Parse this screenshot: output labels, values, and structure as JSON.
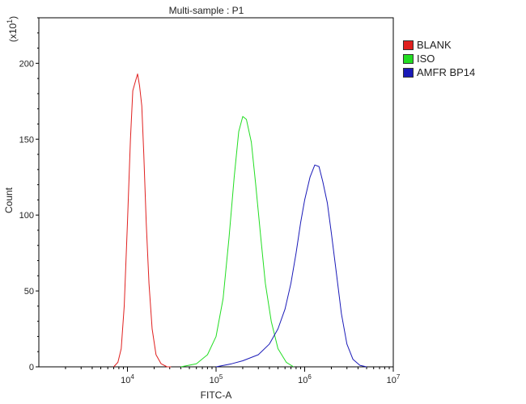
{
  "chart_data": {
    "type": "line",
    "title": "Multi-sample : P1",
    "xlabel": "FITC-A",
    "ylabel": "Count",
    "y_multiplier_label": "(x10",
    "y_multiplier_exp": "1",
    "x_scale": "log",
    "xlim": [
      1000,
      10000000
    ],
    "ylim": [
      0,
      230
    ],
    "y_ticks": [
      0,
      50,
      100,
      150,
      200
    ],
    "x_ticks": [
      {
        "value": 10000,
        "base": "10",
        "exp": "4"
      },
      {
        "value": 100000,
        "base": "10",
        "exp": "5"
      },
      {
        "value": 1000000,
        "base": "10",
        "exp": "6"
      },
      {
        "value": 10000000,
        "base": "10",
        "exp": "7"
      }
    ],
    "legend_position": "top-right",
    "series": [
      {
        "name": "BLANK",
        "color": "#e0201f",
        "x": [
          7000,
          7800,
          8500,
          9200,
          10000,
          10800,
          11500,
          12300,
          13000,
          13700,
          14500,
          15300,
          16300,
          17500,
          19000,
          21000,
          24000,
          28000,
          31000
        ],
        "y": [
          0,
          3,
          12,
          40,
          95,
          150,
          182,
          188,
          193,
          185,
          172,
          140,
          95,
          55,
          25,
          8,
          2,
          0,
          0
        ]
      },
      {
        "name": "ISO",
        "color": "#22dd22",
        "x": [
          40000,
          60000,
          80000,
          100000,
          120000,
          140000,
          160000,
          180000,
          200000,
          220000,
          250000,
          280000,
          320000,
          360000,
          420000,
          500000,
          620000,
          750000
        ],
        "y": [
          0,
          2,
          8,
          20,
          45,
          85,
          125,
          155,
          165,
          163,
          148,
          120,
          85,
          55,
          30,
          12,
          3,
          0
        ]
      },
      {
        "name": "AMFR BP14",
        "color": "#1a1ab8",
        "x": [
          100000,
          150000,
          200000,
          300000,
          400000,
          500000,
          600000,
          700000,
          800000,
          900000,
          1000000,
          1150000,
          1300000,
          1450000,
          1600000,
          1800000,
          2000000,
          2300000,
          2600000,
          3000000,
          3500000,
          4200000,
          5000000
        ],
        "y": [
          0,
          2,
          4,
          8,
          15,
          25,
          38,
          55,
          75,
          95,
          110,
          125,
          133,
          132,
          122,
          108,
          88,
          60,
          35,
          15,
          5,
          1,
          0
        ]
      }
    ]
  }
}
